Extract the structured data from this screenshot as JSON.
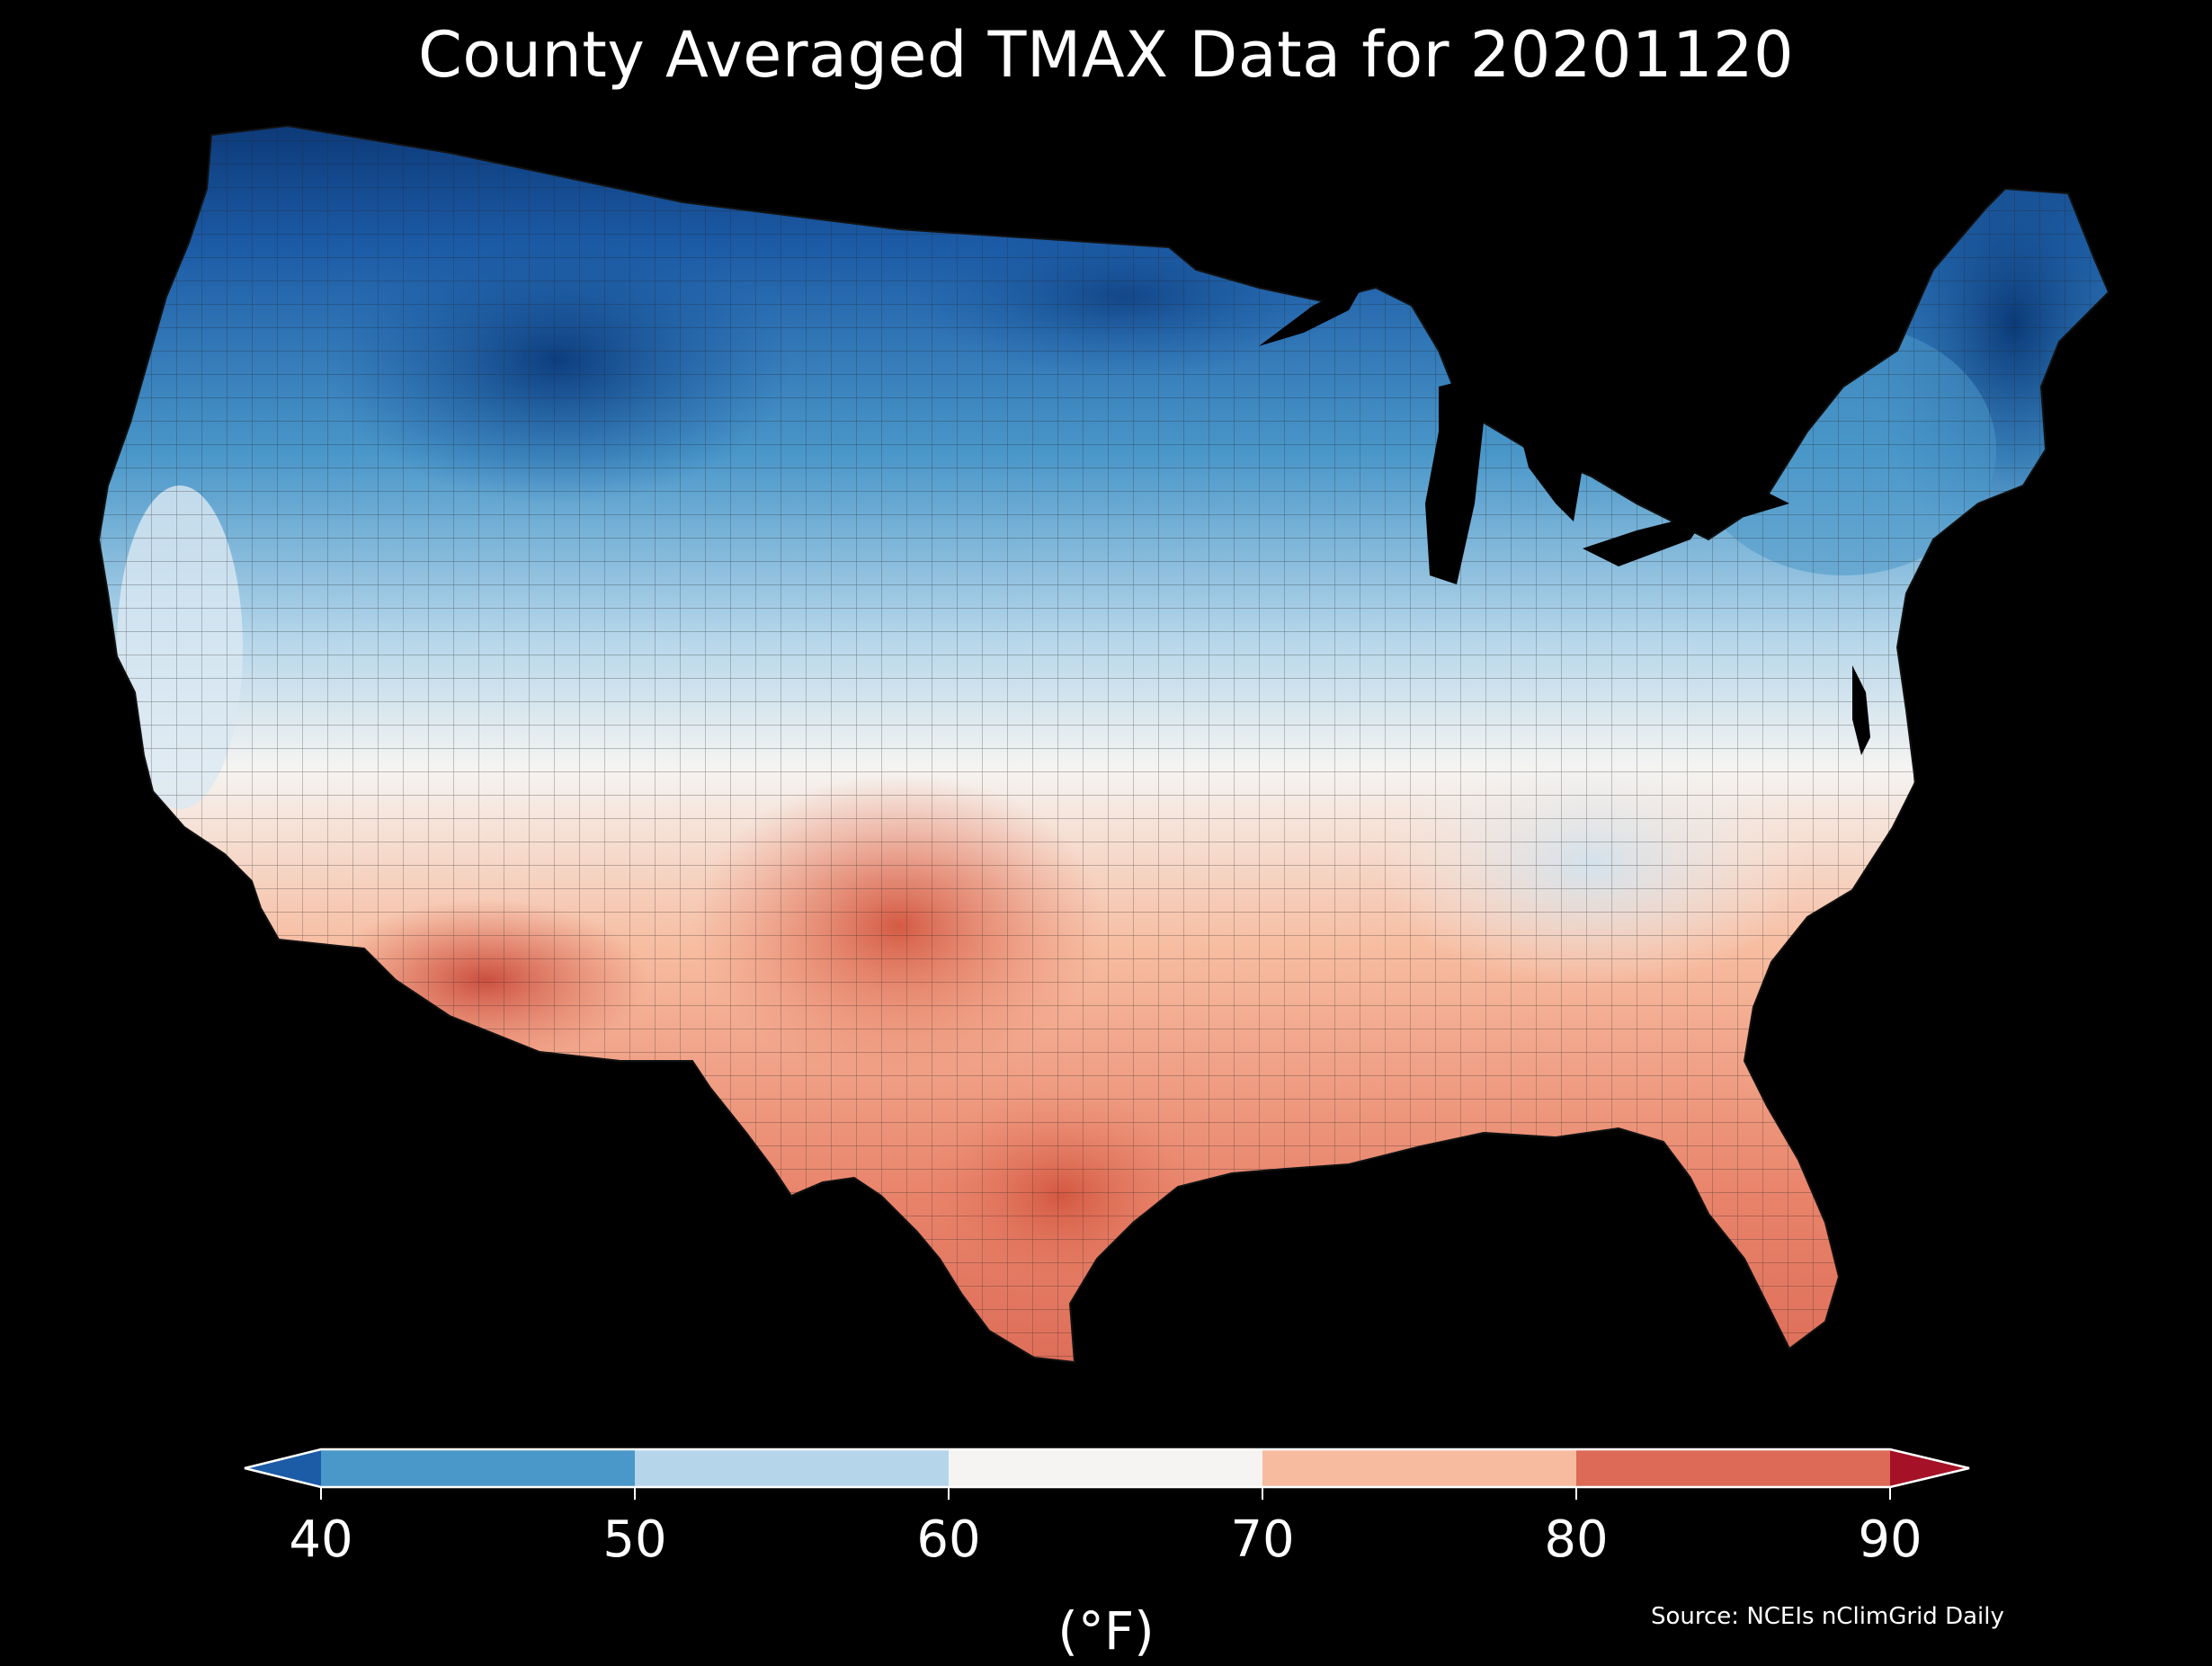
{
  "title": "County Averaged TMAX Data for 20201120",
  "colorbar": {
    "ticks": [
      "40",
      "50",
      "60",
      "70",
      "80",
      "90"
    ],
    "unit": "(°F)",
    "bins": [
      {
        "range": "<40",
        "color": "#1c5ba6"
      },
      {
        "range": "40-50",
        "color": "#4a97c9"
      },
      {
        "range": "50-60",
        "color": "#b5d6ea"
      },
      {
        "range": "60-70",
        "color": "#f5f4f2"
      },
      {
        "range": "70-80",
        "color": "#f7bca0"
      },
      {
        "range": "80-90",
        "color": "#dc6a56"
      },
      {
        "range": ">90",
        "color": "#a51126"
      }
    ]
  },
  "source": "Source: NCEIs nClimGrid Daily",
  "background_color": "#000000"
}
